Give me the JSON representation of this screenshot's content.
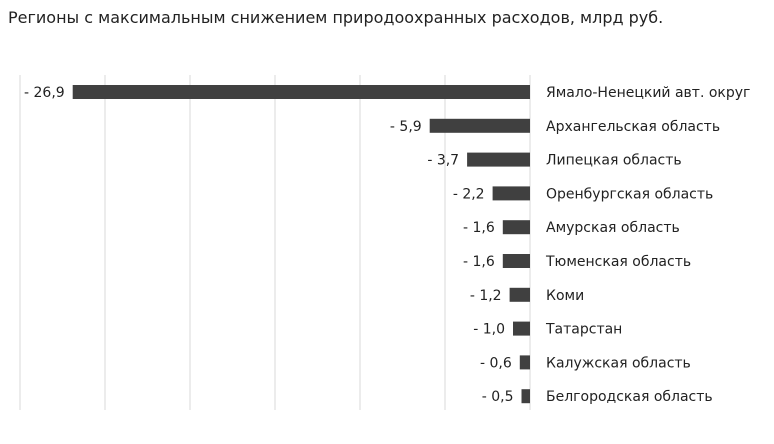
{
  "title": "Регионы с максимальным снижением природоохранных расходов, млрд руб.",
  "chart_data": {
    "type": "bar",
    "orientation": "horizontal",
    "categories": [
      "Ямало-Ненецкий авт. округ",
      "Архангельская область",
      "Липецкая область",
      "Оренбургская область",
      "Амурская область",
      "Тюменская область",
      "Коми",
      "Татарстан",
      "Калужская область",
      "Белгородская область"
    ],
    "values": [
      -26.9,
      -5.9,
      -3.7,
      -2.2,
      -1.6,
      -1.6,
      -1.2,
      -1.0,
      -0.6,
      -0.5
    ],
    "value_labels": [
      "- 26,9",
      "- 5,9",
      "- 3,7",
      "- 2,2",
      "- 1,6",
      "- 1,6",
      "- 1,2",
      "- 1,0",
      "- 0,6",
      "- 0,5"
    ],
    "xlim": [
      -30,
      0
    ],
    "grid": true,
    "bar_color": "#404040",
    "grid_color": "#d9d9d9"
  }
}
